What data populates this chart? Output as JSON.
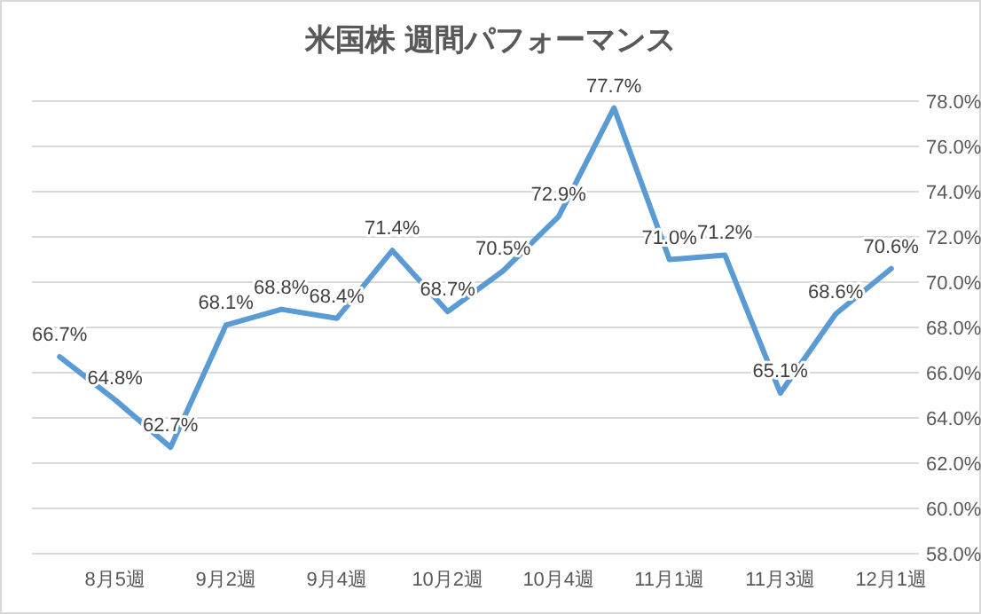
{
  "chart_data": {
    "type": "line",
    "title": "米国株 週間パフォーマンス",
    "categories": [
      null,
      "8月5週",
      null,
      "9月2週",
      null,
      "9月4週",
      null,
      "10月2週",
      null,
      "10月4週",
      null,
      "11月1週",
      null,
      "11月3週",
      null,
      "12月1週"
    ],
    "series": [
      {
        "color": "#5b9bd5",
        "values": [
          66.7,
          64.8,
          62.7,
          68.1,
          68.8,
          68.4,
          71.4,
          68.7,
          70.5,
          72.9,
          77.7,
          71.0,
          71.2,
          65.1,
          68.6,
          70.6
        ],
        "value_labels": [
          "66.7%",
          "64.8%",
          "62.7%",
          "68.1%",
          "68.8%",
          "68.4%",
          "71.4%",
          "68.7%",
          "70.5%",
          "72.9%",
          "77.7%",
          "71.0%",
          "71.2%",
          "65.1%",
          "68.6%",
          "70.6%"
        ]
      }
    ],
    "ylim": [
      58,
      78
    ],
    "yticks": [
      {
        "value": 58,
        "label": "58.0%"
      },
      {
        "value": 60,
        "label": "60.0%"
      },
      {
        "value": 62,
        "label": "62.0%"
      },
      {
        "value": 64,
        "label": "64.0%"
      },
      {
        "value": 66,
        "label": "66.0%"
      },
      {
        "value": 68,
        "label": "68.0%"
      },
      {
        "value": 70,
        "label": "70.0%"
      },
      {
        "value": 72,
        "label": "72.0%"
      },
      {
        "value": 74,
        "label": "74.0%"
      },
      {
        "value": 76,
        "label": "76.0%"
      },
      {
        "value": 78,
        "label": "78.0%"
      }
    ],
    "grid": "y",
    "marker": "none",
    "line_style": "solid"
  }
}
